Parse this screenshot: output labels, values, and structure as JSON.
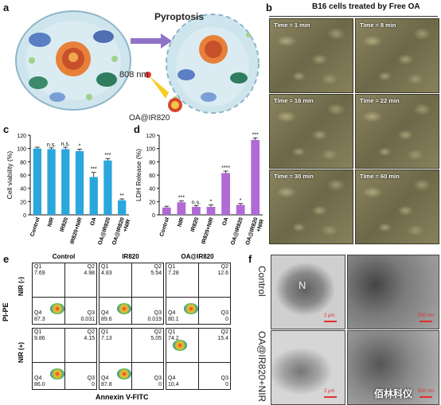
{
  "panel_a": {
    "letter": "a",
    "pyroptosis": "Pyroptosis",
    "laser": "808 nm",
    "nanoparticle": "OA@IR820"
  },
  "panel_b": {
    "letter": "b",
    "title": "B16 cells treated by Free OA",
    "frames": [
      "Time = 1 min",
      "Time = 8 min",
      "Time = 16 min",
      "Time = 22 min",
      "Time = 30 min",
      "Time = 60 min"
    ]
  },
  "panel_c": {
    "letter": "c",
    "chart_data": {
      "type": "bar",
      "ylabel": "Cell viability (%)",
      "ylim": [
        0,
        120
      ],
      "yticks": [
        "0",
        "20",
        "40",
        "60",
        "80",
        "100",
        "120"
      ],
      "categories": [
        "Control",
        "NIR",
        "IR820",
        "IR820+NIR",
        "OA",
        "OA@IR820",
        "OA@IR820 +NIR"
      ],
      "values": [
        100,
        99,
        99,
        96,
        57,
        82,
        22
      ],
      "errors": [
        2,
        2,
        3,
        3,
        7,
        3,
        2
      ],
      "significance": [
        "",
        "n.s.",
        "n.s.",
        "*",
        "***",
        "***",
        "**"
      ],
      "color": "#2aa7dd"
    }
  },
  "panel_d": {
    "letter": "d",
    "chart_data": {
      "type": "bar",
      "ylabel": "LDH Release (%)",
      "ylim": [
        0,
        120
      ],
      "yticks": [
        "0",
        "20",
        "40",
        "60",
        "80",
        "100",
        "120"
      ],
      "categories": [
        "Control",
        "NIR",
        "IR820",
        "IR820+NIR",
        "OA",
        "OA@IR820",
        "OA@IR820 +NIR"
      ],
      "values": [
        11,
        19,
        12,
        12,
        63,
        15,
        113
      ],
      "errors": [
        2,
        2,
        2,
        3,
        3,
        2,
        3
      ],
      "significance": [
        "",
        "***",
        "n.s.",
        "*",
        "****",
        "*",
        "***"
      ],
      "color": "#b06ad6"
    }
  },
  "panel_e": {
    "letter": "e",
    "columns": [
      "Control",
      "IR820",
      "OA@IR820"
    ],
    "rows": [
      "NIR (-)",
      "NIR (+)"
    ],
    "ylabel": "PI-PE",
    "xlabel": "Annexin V-FITC",
    "plots": [
      {
        "q1": "7.69",
        "q2": "4.98",
        "q3": "0.031",
        "q4": "87.3"
      },
      {
        "q1": "4.83",
        "q2": "5.54",
        "q3": "0.019",
        "q4": "89.6"
      },
      {
        "q1": "7.28",
        "q2": "12.6",
        "q3": "0",
        "q4": "80.1"
      },
      {
        "q1": "9.86",
        "q2": "4.15",
        "q3": "0",
        "q4": "86.0"
      },
      {
        "q1": "7.13",
        "q2": "5.05",
        "q3": "0",
        "q4": "87.8"
      },
      {
        "q1": "74.2",
        "q2": "15.4",
        "q3": "0",
        "q4": "10.4"
      }
    ],
    "quadrant_names": [
      "Q1",
      "Q2",
      "Q3",
      "Q4"
    ]
  },
  "panel_f": {
    "letter": "f",
    "row_labels": [
      "Control",
      "OA@IR820+NIR"
    ],
    "nucleus_label": "N",
    "scale_labels": [
      "2 μm",
      "500 nm",
      "2 μm",
      "500 nm"
    ]
  },
  "watermark": "佰林科仪"
}
